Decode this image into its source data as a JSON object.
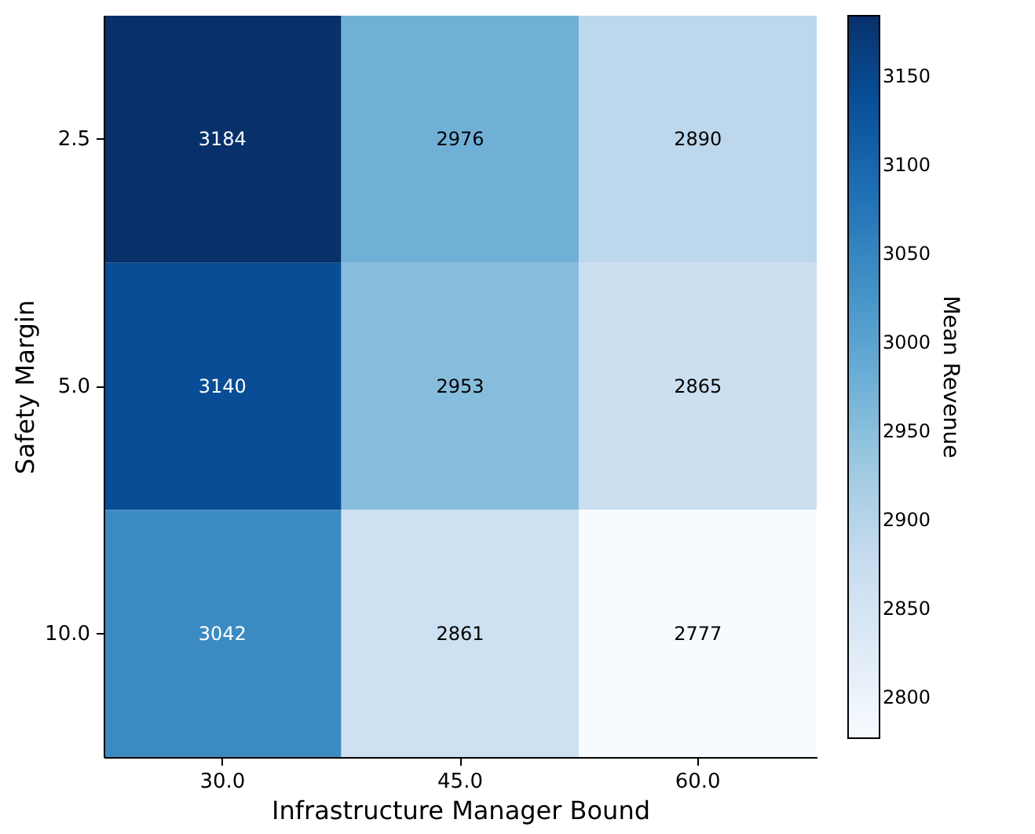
{
  "chart_data": {
    "type": "heatmap",
    "xlabel": "Infrastructure Manager Bound",
    "ylabel": "Safety Margin",
    "clabel": "Mean Revenue",
    "categories": [
      "30.0",
      "45.0",
      "60.0"
    ],
    "y_categories": [
      "2.5",
      "5.0",
      "10.0"
    ],
    "cells": [
      [
        3184,
        2976,
        2890
      ],
      [
        3140,
        2953,
        2865
      ],
      [
        3042,
        2861,
        2777
      ]
    ],
    "data_labels": true,
    "clim": [
      2777,
      3184
    ],
    "cticks": [
      2800,
      2850,
      2900,
      2950,
      3000,
      3050,
      3100,
      3150
    ]
  }
}
